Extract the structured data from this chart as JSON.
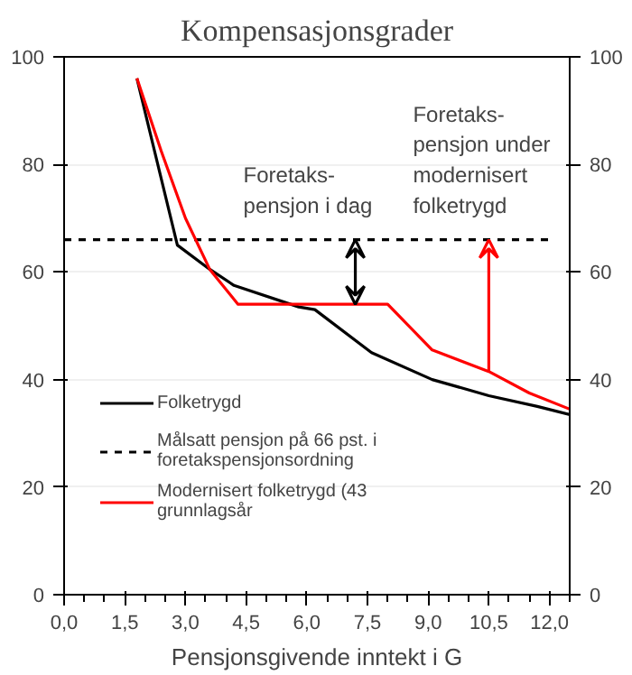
{
  "chart_data": {
    "type": "line",
    "title": "Kompensasjonsgrader",
    "xlabel": "Pensjonsgivende inntekt i G",
    "xlim": [
      0,
      12.5
    ],
    "xticks": [
      {
        "value": 0,
        "label": "0,0"
      },
      {
        "value": 1.5,
        "label": "1,5"
      },
      {
        "value": 3,
        "label": "3,0"
      },
      {
        "value": 4.5,
        "label": "4,5"
      },
      {
        "value": 6,
        "label": "6,0"
      },
      {
        "value": 7.5,
        "label": "7,5"
      },
      {
        "value": 9,
        "label": "9,0"
      },
      {
        "value": 10.5,
        "label": "10,5"
      },
      {
        "value": 12,
        "label": "12,0"
      }
    ],
    "ylim": [
      0,
      100
    ],
    "yticks": [
      0,
      20,
      40,
      60,
      80,
      100
    ],
    "y2lim": [
      0,
      100
    ],
    "y2ticks": [
      0,
      20,
      40,
      60,
      80,
      100
    ],
    "grid": "y",
    "legend": "left",
    "line_style": "solid",
    "marker": "none",
    "series": [
      {
        "name": "Folketrygd",
        "color": "#000000",
        "x": [
          1.8,
          2.8,
          3.6,
          4.2,
          5.8,
          6.2,
          7.6,
          9.1,
          10.5,
          11.7,
          12.5
        ],
        "values": [
          96,
          65,
          60.5,
          57.5,
          53.5,
          53,
          45,
          40,
          37,
          35,
          33.5
        ]
      },
      {
        "name": "Målsatt pensjon på 66 pst. i\nforetakspensjonsordning",
        "color": "#000000",
        "line_style": "dashed",
        "x": [
          0,
          12
        ],
        "values": [
          66,
          66
        ]
      },
      {
        "name": "Modernisert folketrygd (43\ngrunnlagsår",
        "color": "#ff0000",
        "x": [
          1.8,
          2.4,
          3.0,
          3.6,
          4.3,
          8.0,
          9.1,
          10.5,
          11.5,
          12.5
        ],
        "values": [
          96,
          82.5,
          70,
          60.5,
          54,
          54,
          45.5,
          41.5,
          37.5,
          34.5
        ]
      }
    ],
    "annotations": [
      {
        "text": "Foretaks-\npensjon i dag",
        "x": 7.2,
        "y": 66
      },
      {
        "text": "Foretaks-\npensjon under\nmodernisert\nfolketrygd",
        "x": 10.5,
        "y": 66
      }
    ]
  }
}
